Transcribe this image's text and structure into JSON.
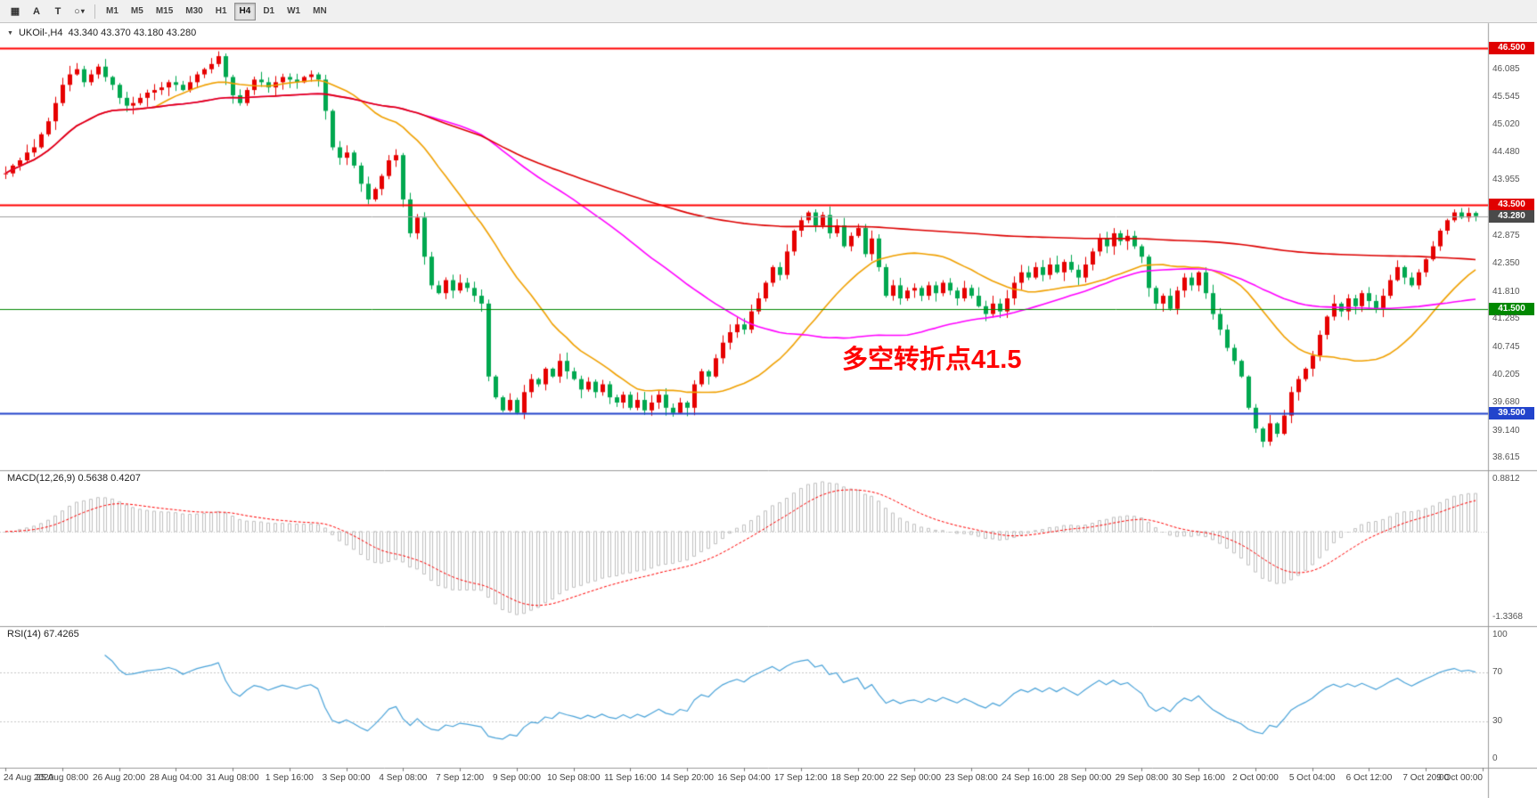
{
  "toolbar": {
    "tools": [
      {
        "id": "indicators-grid",
        "glyph": "▦"
      },
      {
        "id": "text-label",
        "glyph": "A"
      },
      {
        "id": "text",
        "glyph": "T"
      },
      {
        "id": "shapes",
        "glyph": "○",
        "caret": "▾"
      }
    ],
    "timeframes": [
      {
        "label": "M1",
        "active": false
      },
      {
        "label": "M5",
        "active": false
      },
      {
        "label": "M15",
        "active": false
      },
      {
        "label": "M30",
        "active": false
      },
      {
        "label": "H1",
        "active": false
      },
      {
        "label": "H4",
        "active": true
      },
      {
        "label": "D1",
        "active": false
      },
      {
        "label": "W1",
        "active": false
      },
      {
        "label": "MN",
        "active": false
      }
    ]
  },
  "chart_header": {
    "marker": "▼",
    "symbol": "UKOil-,H4",
    "ohlc": "43.340 43.370 43.180 43.280"
  },
  "annotation": {
    "text": "多空转折点41.5"
  },
  "indicator_titles": {
    "macd": "MACD(12,26,9) 0.5638 0.4207",
    "rsi": "RSI(14) 67.4265"
  },
  "chart_data": {
    "type": "candlestick",
    "symbol": "UKOil-",
    "timeframe": "H4",
    "title": "UKOil-,H4",
    "ylim": [
      38.4,
      46.95
    ],
    "bars_per_label": 8,
    "time_labels": [
      "24 Aug 2020",
      "25 Aug 08:00",
      "26 Aug 20:00",
      "28 Aug 04:00",
      "31 Aug 08:00",
      "1 Sep 16:00",
      "3 Sep 00:00",
      "4 Sep 08:00",
      "7 Sep 12:00",
      "9 Sep 00:00",
      "10 Sep 08:00",
      "11 Sep 16:00",
      "14 Sep 20:00",
      "16 Sep 04:00",
      "17 Sep 12:00",
      "18 Sep 20:00",
      "22 Sep 00:00",
      "23 Sep 08:00",
      "24 Sep 16:00",
      "28 Sep 00:00",
      "29 Sep 08:00",
      "30 Sep 16:00",
      "2 Oct 00:00",
      "5 Oct 04:00",
      "6 Oct 12:00",
      "7 Oct 20:00",
      "9 Oct 00:00"
    ],
    "closes": [
      44.1,
      44.25,
      44.35,
      44.5,
      44.6,
      44.85,
      45.1,
      45.45,
      45.8,
      46.0,
      46.1,
      45.85,
      46.0,
      46.15,
      45.95,
      45.8,
      45.55,
      45.4,
      45.45,
      45.55,
      45.65,
      45.7,
      45.75,
      45.85,
      45.8,
      45.7,
      45.85,
      46.0,
      46.1,
      46.2,
      46.35,
      45.95,
      45.6,
      45.45,
      45.7,
      45.9,
      45.85,
      45.75,
      45.85,
      45.95,
      45.9,
      45.85,
      45.95,
      46.0,
      45.9,
      45.3,
      44.6,
      44.4,
      44.5,
      44.25,
      43.9,
      43.6,
      43.8,
      44.05,
      44.35,
      44.45,
      43.6,
      42.95,
      43.25,
      42.5,
      41.95,
      41.8,
      42.05,
      41.85,
      42.0,
      41.9,
      41.75,
      41.6,
      40.2,
      39.8,
      39.55,
      39.75,
      39.5,
      39.9,
      40.15,
      40.05,
      40.35,
      40.2,
      40.5,
      40.3,
      40.15,
      39.95,
      40.1,
      39.9,
      40.05,
      39.8,
      39.7,
      39.85,
      39.6,
      39.75,
      39.55,
      39.7,
      39.85,
      39.6,
      39.5,
      39.7,
      39.6,
      40.05,
      40.3,
      40.2,
      40.55,
      40.85,
      41.05,
      41.2,
      41.1,
      41.45,
      41.7,
      42.0,
      42.3,
      42.15,
      42.6,
      43.0,
      43.2,
      43.35,
      43.1,
      43.3,
      42.95,
      43.1,
      42.7,
      42.9,
      43.05,
      42.55,
      42.85,
      42.3,
      41.75,
      41.95,
      41.7,
      41.85,
      41.9,
      41.75,
      41.95,
      41.8,
      42.0,
      41.85,
      41.7,
      41.9,
      41.75,
      41.55,
      41.4,
      41.6,
      41.45,
      41.7,
      42.0,
      42.2,
      42.1,
      42.3,
      42.15,
      42.35,
      42.2,
      42.4,
      42.25,
      42.1,
      42.35,
      42.6,
      42.85,
      42.7,
      42.95,
      42.8,
      42.9,
      42.7,
      42.5,
      41.9,
      41.6,
      41.75,
      41.5,
      41.85,
      42.1,
      41.95,
      42.2,
      41.8,
      41.4,
      41.1,
      40.75,
      40.5,
      40.2,
      39.6,
      39.2,
      38.95,
      39.3,
      39.1,
      39.45,
      39.9,
      40.15,
      40.35,
      40.6,
      41.0,
      41.35,
      41.6,
      41.45,
      41.7,
      41.55,
      41.8,
      41.65,
      41.5,
      41.75,
      42.05,
      42.3,
      42.1,
      41.95,
      42.2,
      42.45,
      42.7,
      43.0,
      43.2,
      43.35,
      43.25,
      43.34,
      43.28
    ],
    "last_bar": {
      "open": 43.34,
      "high": 43.37,
      "low": 43.18,
      "close": 43.28
    },
    "candle_up_color": "#e60000",
    "candle_down_color": "#00a84f",
    "moving_averages": [
      {
        "name": "fast",
        "period": 22,
        "color": "#f0a000"
      },
      {
        "name": "medium",
        "period": 60,
        "color": "#ff00ff"
      },
      {
        "name": "slow",
        "period": 200,
        "color": "#dd0000"
      }
    ],
    "horizontal_lines": [
      {
        "value": 46.5,
        "color": "#ff0000",
        "width": 2,
        "label": "46.500"
      },
      {
        "value": 43.5,
        "color": "#ff0000",
        "width": 2,
        "label": "43.500"
      },
      {
        "value": 41.5,
        "color": "#008800",
        "width": 1,
        "label": "41.500"
      },
      {
        "value": 39.5,
        "color": "#2244cc",
        "width": 2,
        "label": "39.500"
      }
    ],
    "current_price": {
      "value": 43.28,
      "label": "43.280",
      "line_color": "#a0a0a0"
    },
    "price_ticks": [
      {
        "text": "46.500",
        "value": 46.5,
        "badge": "red"
      },
      {
        "text": "46.085",
        "value": 46.085
      },
      {
        "text": "45.545",
        "value": 45.545
      },
      {
        "text": "45.020",
        "value": 45.02
      },
      {
        "text": "44.480",
        "value": 44.48
      },
      {
        "text": "43.955",
        "value": 43.955
      },
      {
        "text": "43.500",
        "value": 43.5,
        "badge": "red"
      },
      {
        "text": "43.280",
        "value": 43.28,
        "badge": "gray"
      },
      {
        "text": "42.875",
        "value": 42.875
      },
      {
        "text": "42.350",
        "value": 42.35
      },
      {
        "text": "41.810",
        "value": 41.81
      },
      {
        "text": "41.500",
        "value": 41.5,
        "badge": "green"
      },
      {
        "text": "41.285",
        "value": 41.285
      },
      {
        "text": "40.745",
        "value": 40.745
      },
      {
        "text": "40.205",
        "value": 40.205
      },
      {
        "text": "39.680",
        "value": 39.68
      },
      {
        "text": "39.500",
        "value": 39.5,
        "badge": "blue"
      },
      {
        "text": "39.140",
        "value": 39.14
      },
      {
        "text": "38.615",
        "value": 38.615
      }
    ],
    "indicators": [
      {
        "type": "macd",
        "fast": 12,
        "slow": 26,
        "signal": 9,
        "current_macd": 0.5638,
        "current_signal": 0.4207,
        "y_labels": [
          "0.8812",
          "-1.3368"
        ],
        "histogram_color": "#c0c0c0",
        "signal_color": "#ff0000"
      },
      {
        "type": "rsi",
        "period": 14,
        "current": 67.4265,
        "levels": [
          70,
          30
        ],
        "y_labels": [
          "100",
          "70",
          "30",
          "0"
        ],
        "line_color": "#4aa3d9",
        "level_color": "#c8c8c8"
      }
    ]
  },
  "colors": {
    "badge_red": "#e00000",
    "badge_gray": "#4a4a4a",
    "badge_green": "#008800",
    "badge_blue": "#2244cc",
    "annotation": "#ff0000",
    "panel_border": "#9a9a9a",
    "axis_text": "#555555",
    "toolbar_bg": "#f0f0f0"
  }
}
